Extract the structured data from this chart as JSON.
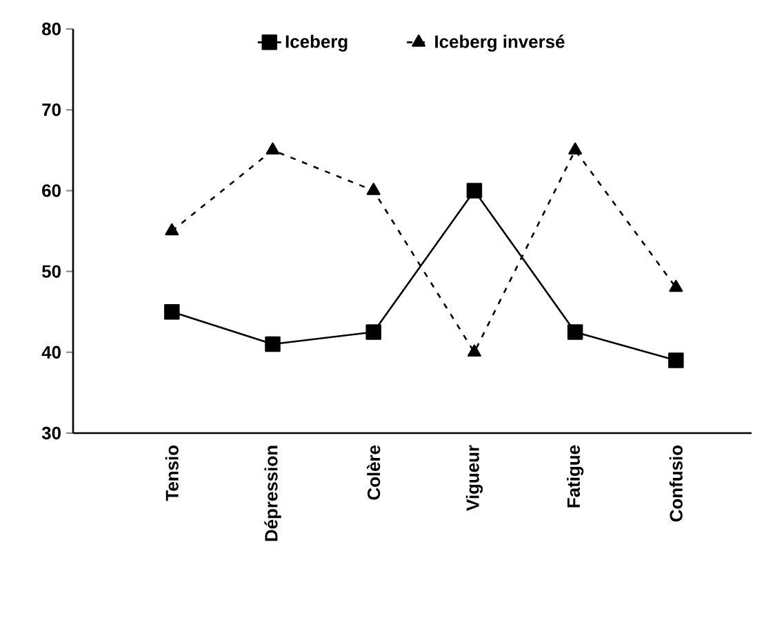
{
  "chart_data": {
    "type": "line",
    "categories": [
      "Tensio",
      "Dépression",
      "Colère",
      "Vigueur",
      "Fatigue",
      "Confusio"
    ],
    "series": [
      {
        "name": "Iceberg",
        "color": "#000000",
        "values": [
          45,
          41,
          42.5,
          60,
          42.5,
          39
        ],
        "marker": "square",
        "line_style": "solid"
      },
      {
        "name": "Iceberg inversé",
        "color": "#000000",
        "values": [
          55,
          65,
          60,
          40,
          65,
          48
        ],
        "marker": "triangle",
        "line_style": "dashed"
      }
    ],
    "ylim": [
      30,
      80
    ],
    "yticks": [
      30,
      40,
      50,
      60,
      70,
      80
    ],
    "grid": false,
    "legend": "top"
  }
}
